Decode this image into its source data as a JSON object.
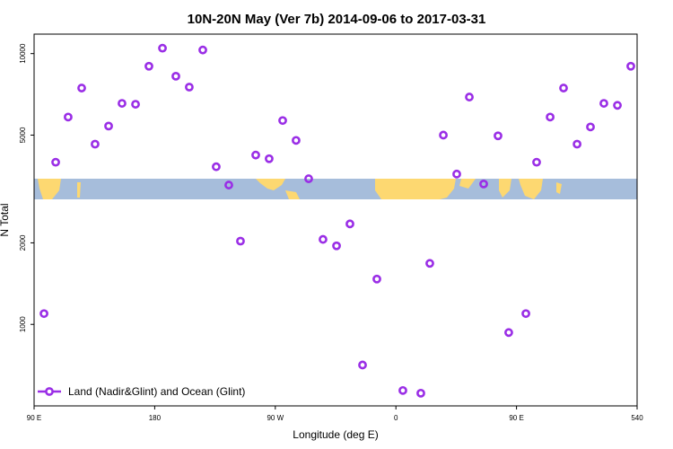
{
  "chart_data": {
    "type": "scatter",
    "title": "10N-20N May (Ver 7b)   2014-09-06 to 2017-03-31",
    "x_label": "Longitude (deg E)",
    "y_label": "N Total",
    "xlim": [
      90,
      540
    ],
    "ylim": [
      500,
      11800
    ],
    "y_log": true,
    "xticks": [
      {
        "value": 90,
        "label": "90 E"
      },
      180,
      {
        "value": 270,
        "label": "90 W"
      },
      {
        "value": 360,
        "label": "0"
      },
      {
        "value": 450,
        "label": "90 E"
      },
      540
    ],
    "yticks": [
      1000,
      2000,
      5000,
      10000
    ],
    "legend": "lower left",
    "series": [
      {
        "name": "Land (Nadir&Glint) and Ocean (Glint)",
        "color": "#9a2ee6",
        "x": [
          97.4,
          106.1,
          115.4,
          125.5,
          135.5,
          145.6,
          155.6,
          165.7,
          175.7,
          185.8,
          195.8,
          205.8,
          215.9,
          225.9,
          235.3,
          244.0,
          255.4,
          265.4,
          275.5,
          285.5,
          294.9,
          305.6,
          315.7,
          325.7,
          335.1,
          345.8,
          365.2,
          378.6,
          385.3,
          395.4,
          405.4,
          414.8,
          425.5,
          436.2,
          444.2,
          457.0,
          465.0,
          475.1,
          485.1,
          495.2,
          505.2,
          515.2,
          525.3,
          535.3
        ],
        "values": [
          1096,
          3970,
          5830,
          7460,
          4630,
          5400,
          6550,
          6500,
          8980,
          10470,
          8250,
          7520,
          10310,
          3820,
          3270,
          2030,
          4220,
          4090,
          5660,
          4780,
          3450,
          2060,
          1950,
          2350,
          708,
          1470,
          570,
          557,
          1680,
          5000,
          3590,
          6910,
          3300,
          4970,
          933,
          1096,
          3970,
          5830,
          7460,
          4630,
          5360,
          6550,
          6440,
          8980
        ]
      }
    ]
  }
}
